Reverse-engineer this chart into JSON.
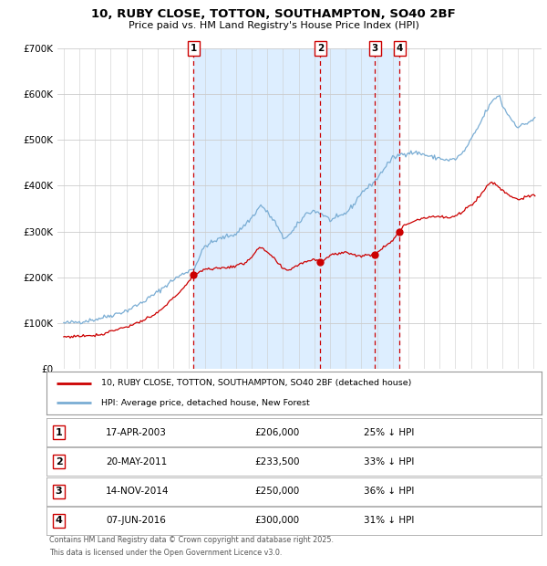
{
  "title_line1": "10, RUBY CLOSE, TOTTON, SOUTHAMPTON, SO40 2BF",
  "title_line2": "Price paid vs. HM Land Registry's House Price Index (HPI)",
  "background_color": "#ffffff",
  "plot_bg_color": "#ffffff",
  "shaded_bg_color": "#ddeeff",
  "hpi_line_color": "#7aadd4",
  "price_line_color": "#cc0000",
  "dashed_line_color": "#cc0000",
  "purchases": [
    {
      "label": "1",
      "date": "2003-04-17",
      "year": 2003.29,
      "price": 206000
    },
    {
      "label": "2",
      "date": "2011-05-20",
      "year": 2011.38,
      "price": 233500
    },
    {
      "label": "3",
      "date": "2014-11-14",
      "year": 2014.87,
      "price": 250000
    },
    {
      "label": "4",
      "date": "2016-06-07",
      "year": 2016.44,
      "price": 300000
    }
  ],
  "legend_line1": "10, RUBY CLOSE, TOTTON, SOUTHAMPTON, SO40 2BF (detached house)",
  "legend_line2": "HPI: Average price, detached house, New Forest",
  "table_rows": [
    {
      "num": "1",
      "date": "17-APR-2003",
      "price": "£206,000",
      "pct": "25% ↓ HPI"
    },
    {
      "num": "2",
      "date": "20-MAY-2011",
      "price": "£233,500",
      "pct": "33% ↓ HPI"
    },
    {
      "num": "3",
      "date": "14-NOV-2014",
      "price": "£250,000",
      "pct": "36% ↓ HPI"
    },
    {
      "num": "4",
      "date": "07-JUN-2016",
      "price": "£300,000",
      "pct": "31% ↓ HPI"
    }
  ],
  "footer_line1": "Contains HM Land Registry data © Crown copyright and database right 2025.",
  "footer_line2": "This data is licensed under the Open Government Licence v3.0.",
  "ytick_labels": [
    "£0",
    "£100K",
    "£200K",
    "£300K",
    "£400K",
    "£500K",
    "£600K",
    "£700K"
  ],
  "ytick_values": [
    0,
    100000,
    200000,
    300000,
    400000,
    500000,
    600000,
    700000
  ],
  "xmin": 1994.6,
  "xmax": 2025.5,
  "ymin": 0,
  "ymax": 700000,
  "shaded_start": 2003.29,
  "shaded_end": 2016.44
}
